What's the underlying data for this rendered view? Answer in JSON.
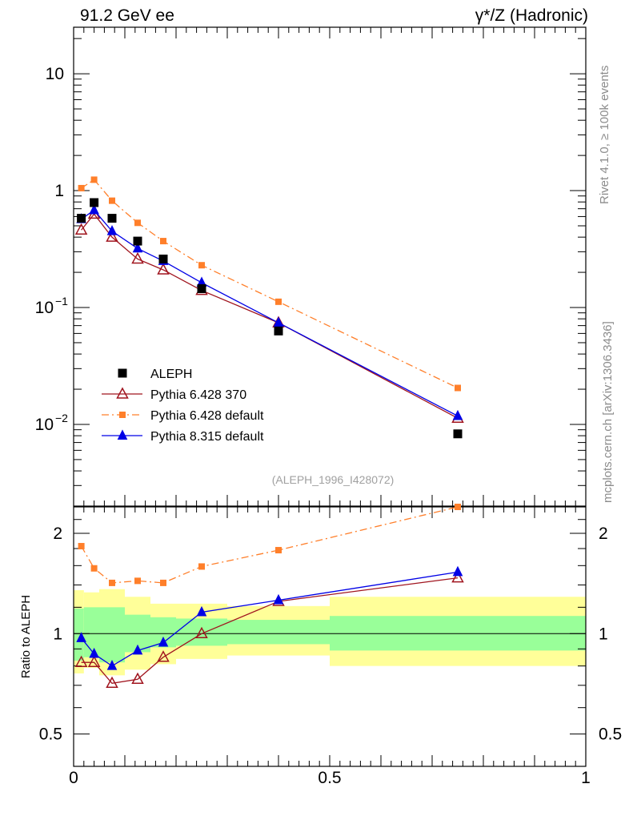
{
  "header": {
    "left_title": "91.2 GeV ee",
    "right_title": "γ*/Z (Hadronic)"
  },
  "side_labels": {
    "rivet": "Rivet 4.1.0, ≥ 100k events",
    "mcplots": "mcplots.cern.ch [arXiv:1306.3436]"
  },
  "analysis_id": "(ALEPH_1996_I428072)",
  "colors": {
    "data": "#000000",
    "p6_370": "#a0141e",
    "p6_default": "#ff7f2a",
    "p8_default": "#0000e6",
    "band_inner": "#99ff99",
    "band_outer": "#ffff99"
  },
  "legend": [
    {
      "key": "data",
      "label": "ALEPH"
    },
    {
      "key": "p6_370",
      "label": "Pythia 6.428 370"
    },
    {
      "key": "p6_default",
      "label": "Pythia 6.428 default"
    },
    {
      "key": "p8_default",
      "label": "Pythia 8.315 default"
    }
  ],
  "chart_data": [
    {
      "type": "scatter",
      "panel": "main",
      "yscale": "log",
      "xlim": [
        0,
        1
      ],
      "ylim": [
        0.002,
        25
      ],
      "ytick_labels": [
        {
          "value": 10,
          "base": "10",
          "exp": ""
        },
        {
          "value": 1,
          "base": "1",
          "exp": ""
        },
        {
          "value": 0.1,
          "base": "10",
          "exp": "−1"
        },
        {
          "value": 0.01,
          "base": "10",
          "exp": "−2"
        }
      ],
      "x": [
        0.015,
        0.04,
        0.075,
        0.125,
        0.175,
        0.25,
        0.4,
        0.75
      ],
      "series": [
        {
          "key": "data",
          "name": "ALEPH",
          "values": [
            0.58,
            0.79,
            0.58,
            0.37,
            0.26,
            0.145,
            0.063,
            0.0083
          ]
        },
        {
          "key": "p6_370",
          "name": "Pythia 6.428 370",
          "values": [
            0.46,
            0.63,
            0.4,
            0.26,
            0.21,
            0.14,
            0.074,
            0.0113
          ]
        },
        {
          "key": "p6_default",
          "name": "Pythia 6.428 default",
          "values": [
            1.05,
            1.24,
            0.82,
            0.53,
            0.37,
            0.23,
            0.112,
            0.0205
          ]
        },
        {
          "key": "p8_default",
          "name": "Pythia 8.315 default",
          "values": [
            0.57,
            0.68,
            0.45,
            0.32,
            0.25,
            0.163,
            0.074,
            0.0118
          ]
        }
      ]
    },
    {
      "type": "line",
      "panel": "ratio",
      "yscale": "log",
      "ylabel": "Ratio to ALEPH",
      "xlabel": "",
      "xlim": [
        0,
        1
      ],
      "ylim": [
        0.4,
        2.4
      ],
      "ytick_labels": [
        {
          "value": 2,
          "label": "2"
        },
        {
          "value": 1,
          "label": "1"
        },
        {
          "value": 0.5,
          "label": "0.5"
        }
      ],
      "xtick_labels": [
        {
          "value": 0,
          "label": "0"
        },
        {
          "value": 0.5,
          "label": "0.5"
        },
        {
          "value": 1,
          "label": "1"
        }
      ],
      "x": [
        0.015,
        0.04,
        0.075,
        0.125,
        0.175,
        0.25,
        0.4,
        0.75
      ],
      "bands": [
        {
          "x0": 0.0,
          "x1": 0.02,
          "inner": [
            0.83,
            1.19
          ],
          "outer": [
            0.76,
            1.35
          ]
        },
        {
          "x0": 0.02,
          "x1": 0.05,
          "inner": [
            0.85,
            1.2
          ],
          "outer": [
            0.79,
            1.33
          ]
        },
        {
          "x0": 0.05,
          "x1": 0.1,
          "inner": [
            0.82,
            1.2
          ],
          "outer": [
            0.75,
            1.36
          ]
        },
        {
          "x0": 0.1,
          "x1": 0.15,
          "inner": [
            0.88,
            1.14
          ],
          "outer": [
            0.78,
            1.29
          ]
        },
        {
          "x0": 0.15,
          "x1": 0.2,
          "inner": [
            0.91,
            1.12
          ],
          "outer": [
            0.81,
            1.23
          ]
        },
        {
          "x0": 0.2,
          "x1": 0.3,
          "inner": [
            0.92,
            1.11
          ],
          "outer": [
            0.84,
            1.23
          ]
        },
        {
          "x0": 0.3,
          "x1": 0.5,
          "inner": [
            0.93,
            1.1
          ],
          "outer": [
            0.86,
            1.21
          ]
        },
        {
          "x0": 0.5,
          "x1": 1.0,
          "inner": [
            0.89,
            1.13
          ],
          "outer": [
            0.8,
            1.29
          ]
        }
      ],
      "series": [
        {
          "key": "p6_370",
          "name": "Pythia 6.428 370",
          "values": [
            0.82,
            0.82,
            0.71,
            0.73,
            0.85,
            1.0,
            1.25,
            1.47
          ]
        },
        {
          "key": "p6_default",
          "name": "Pythia 6.428 default",
          "values": [
            1.83,
            1.57,
            1.42,
            1.44,
            1.42,
            1.59,
            1.78,
            2.45
          ]
        },
        {
          "key": "p8_default",
          "name": "Pythia 8.315 default",
          "values": [
            0.97,
            0.87,
            0.8,
            0.89,
            0.94,
            1.16,
            1.26,
            1.53
          ]
        }
      ]
    }
  ]
}
